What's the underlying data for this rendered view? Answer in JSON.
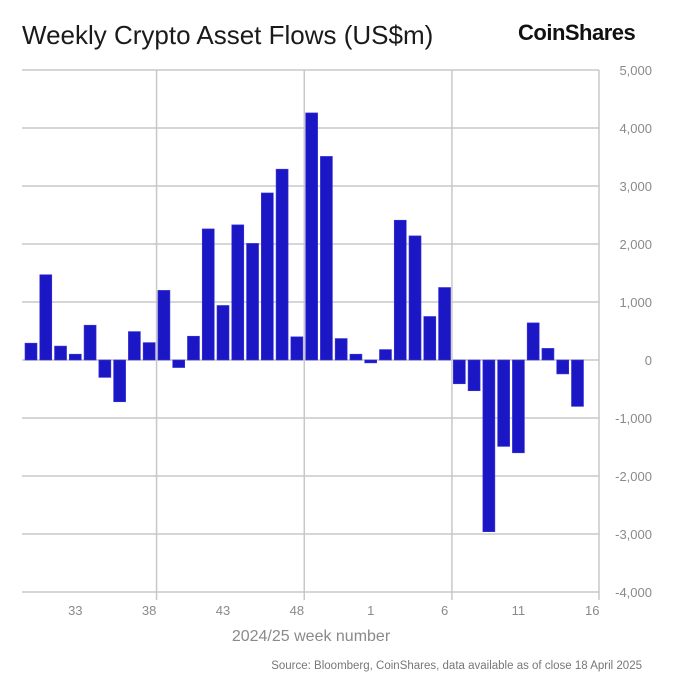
{
  "logo": "CoinShares",
  "source": "Source: Bloomberg, CoinShares, data available as of close 18 April 2025",
  "colors": {
    "bar": "#1c17c4",
    "grid": "#c8c8c8"
  },
  "chart_data": {
    "type": "bar",
    "title": "Weekly Crypto Asset Flows (US$m)",
    "xlabel": "2024/25 week number",
    "ylabel": "",
    "ylim": [
      -4000,
      5000
    ],
    "yticks": [
      5000,
      4000,
      3000,
      2000,
      1000,
      0,
      -1000,
      -2000,
      -3000,
      -4000
    ],
    "ytick_labels": [
      "5,000",
      "4,000",
      "3,000",
      "2,000",
      "1,000",
      "0",
      "-1,000",
      "-2,000",
      "-3,000",
      "-4,000"
    ],
    "xtick_labels": [
      "33",
      "38",
      "43",
      "48",
      "1",
      "6",
      "11",
      "16"
    ],
    "grid": true,
    "y_axis_side": "right",
    "categories": [
      "30",
      "31",
      "32",
      "33",
      "34",
      "35",
      "36",
      "37",
      "38",
      "39",
      "40",
      "41",
      "42",
      "43",
      "44",
      "45",
      "46",
      "47",
      "48",
      "49",
      "50",
      "51",
      "52",
      "1",
      "2",
      "3",
      "4",
      "5",
      "6",
      "7",
      "8",
      "9",
      "10",
      "11",
      "12",
      "13",
      "14",
      "15"
    ],
    "values": [
      290,
      1470,
      240,
      100,
      600,
      -300,
      -720,
      490,
      300,
      1200,
      -130,
      410,
      2260,
      940,
      2330,
      2010,
      2880,
      3290,
      400,
      4260,
      3510,
      370,
      100,
      -50,
      180,
      2410,
      2140,
      750,
      1250,
      -410,
      -530,
      -2960,
      -1490,
      -1600,
      640,
      200,
      -240,
      -800
    ]
  }
}
